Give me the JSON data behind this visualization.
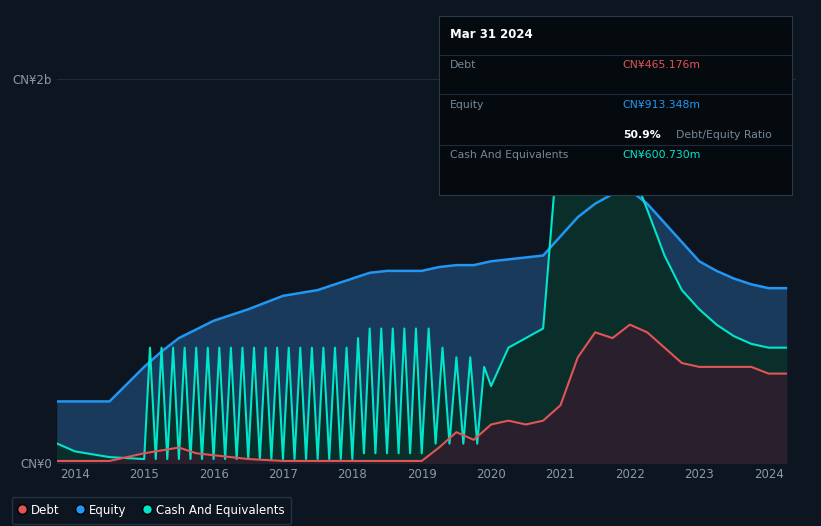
{
  "background_color": "#0d1520",
  "plot_bg_color": "#0d1520",
  "title": "Mar 31 2024",
  "tooltip": {
    "debt_label": "Debt",
    "debt_value": "CN¥465.176m",
    "debt_color": "#e05555",
    "equity_label": "Equity",
    "equity_value": "CN¥913.348m",
    "equity_color": "#2196f3",
    "ratio_value": "50.9%",
    "ratio_text": " Debt/Equity Ratio",
    "cash_label": "Cash And Equivalents",
    "cash_value": "CN¥600.730m",
    "cash_color": "#00e5cc"
  },
  "ylabel_top": "CN¥2b",
  "ylabel_bottom": "CN¥0",
  "xlabel_ticks": [
    "2014",
    "2015",
    "2016",
    "2017",
    "2018",
    "2019",
    "2020",
    "2021",
    "2022",
    "2023",
    "2024"
  ],
  "legend": [
    {
      "label": "Debt",
      "color": "#e05555"
    },
    {
      "label": "Equity",
      "color": "#2196f3"
    },
    {
      "label": "Cash And Equivalents",
      "color": "#00e5cc"
    }
  ],
  "equity_color": "#2196f3",
  "equity_fill": "#1a3a5c",
  "debt_color": "#e05555",
  "debt_fill": "#2a1f2d",
  "cash_color": "#00e5cc",
  "cash_fill": "#0a2e2a",
  "grid_color": "#1e2d3d",
  "ylim": [
    0,
    2.0
  ],
  "xlim": [
    2013.75,
    2024.4
  ],
  "equity_x": [
    2013.75,
    2014.0,
    2014.5,
    2015.0,
    2015.25,
    2015.5,
    2016.0,
    2016.5,
    2017.0,
    2017.5,
    2018.0,
    2018.25,
    2018.5,
    2018.75,
    2019.0,
    2019.25,
    2019.5,
    2019.75,
    2020.0,
    2020.25,
    2020.5,
    2020.75,
    2021.0,
    2021.25,
    2021.5,
    2021.75,
    2022.0,
    2022.25,
    2022.5,
    2022.75,
    2023.0,
    2023.25,
    2023.5,
    2023.75,
    2024.0,
    2024.25
  ],
  "equity_y": [
    0.32,
    0.32,
    0.32,
    0.5,
    0.58,
    0.65,
    0.74,
    0.8,
    0.87,
    0.9,
    0.96,
    0.99,
    1.0,
    1.0,
    1.0,
    1.02,
    1.03,
    1.03,
    1.05,
    1.06,
    1.07,
    1.08,
    1.18,
    1.28,
    1.35,
    1.4,
    1.42,
    1.35,
    1.25,
    1.15,
    1.05,
    1.0,
    0.96,
    0.93,
    0.91,
    0.91
  ],
  "cash_x": [
    2013.75,
    2014.0,
    2014.5,
    2015.0,
    2015.083,
    2015.167,
    2015.25,
    2015.333,
    2015.417,
    2015.5,
    2015.583,
    2015.667,
    2015.75,
    2015.833,
    2015.917,
    2016.0,
    2016.083,
    2016.167,
    2016.25,
    2016.333,
    2016.417,
    2016.5,
    2016.583,
    2016.667,
    2016.75,
    2016.833,
    2016.917,
    2017.0,
    2017.083,
    2017.167,
    2017.25,
    2017.333,
    2017.417,
    2017.5,
    2017.583,
    2017.667,
    2017.75,
    2017.833,
    2017.917,
    2018.0,
    2018.083,
    2018.167,
    2018.25,
    2018.333,
    2018.417,
    2018.5,
    2018.583,
    2018.667,
    2018.75,
    2018.833,
    2018.917,
    2019.0,
    2019.1,
    2019.2,
    2019.3,
    2019.4,
    2019.5,
    2019.6,
    2019.7,
    2019.8,
    2019.9,
    2020.0,
    2020.25,
    2020.5,
    2020.75,
    2021.0,
    2021.25,
    2021.5,
    2021.75,
    2022.0,
    2022.25,
    2022.5,
    2022.75,
    2023.0,
    2023.25,
    2023.5,
    2023.75,
    2024.0,
    2024.25
  ],
  "cash_y": [
    0.1,
    0.06,
    0.03,
    0.02,
    0.6,
    0.02,
    0.6,
    0.02,
    0.6,
    0.02,
    0.6,
    0.02,
    0.6,
    0.02,
    0.6,
    0.02,
    0.6,
    0.02,
    0.6,
    0.02,
    0.6,
    0.02,
    0.6,
    0.02,
    0.6,
    0.02,
    0.6,
    0.02,
    0.6,
    0.02,
    0.6,
    0.02,
    0.6,
    0.02,
    0.6,
    0.02,
    0.6,
    0.02,
    0.6,
    0.02,
    0.65,
    0.05,
    0.7,
    0.05,
    0.7,
    0.05,
    0.7,
    0.05,
    0.7,
    0.05,
    0.7,
    0.05,
    0.7,
    0.1,
    0.6,
    0.1,
    0.55,
    0.1,
    0.55,
    0.1,
    0.5,
    0.4,
    0.6,
    0.65,
    0.7,
    1.82,
    1.82,
    1.78,
    1.72,
    1.55,
    1.32,
    1.08,
    0.9,
    0.8,
    0.72,
    0.66,
    0.62,
    0.6,
    0.6
  ],
  "debt_x": [
    2013.75,
    2014.0,
    2014.5,
    2015.0,
    2015.5,
    2015.75,
    2016.0,
    2016.5,
    2017.0,
    2017.5,
    2018.0,
    2018.5,
    2019.0,
    2019.25,
    2019.5,
    2019.75,
    2020.0,
    2020.25,
    2020.5,
    2020.75,
    2021.0,
    2021.25,
    2021.5,
    2021.75,
    2022.0,
    2022.25,
    2022.5,
    2022.75,
    2023.0,
    2023.25,
    2023.5,
    2023.75,
    2024.0,
    2024.25
  ],
  "debt_y": [
    0.01,
    0.01,
    0.01,
    0.05,
    0.08,
    0.05,
    0.04,
    0.02,
    0.01,
    0.01,
    0.01,
    0.01,
    0.01,
    0.08,
    0.16,
    0.12,
    0.2,
    0.22,
    0.2,
    0.22,
    0.3,
    0.55,
    0.68,
    0.65,
    0.72,
    0.68,
    0.6,
    0.52,
    0.5,
    0.5,
    0.5,
    0.5,
    0.465,
    0.465
  ]
}
